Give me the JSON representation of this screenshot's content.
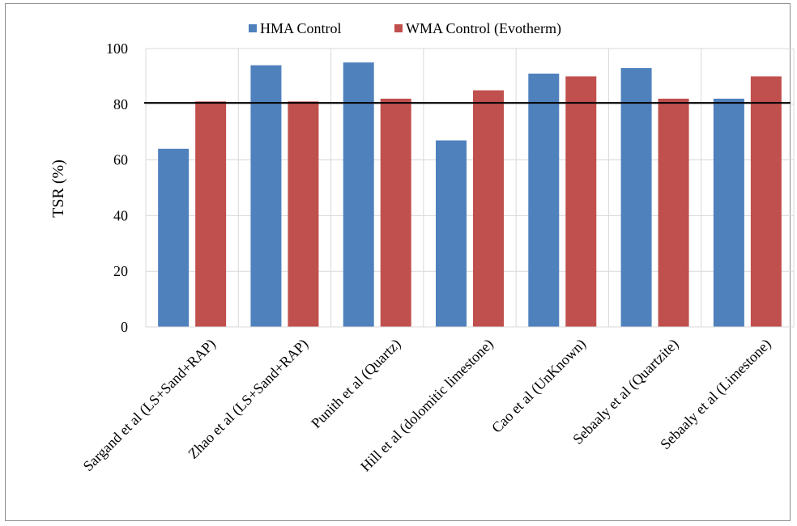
{
  "chart_data": {
    "type": "bar",
    "categories": [
      "Sargand et al (LS+Sand+RAP)",
      "Zhao et al (LS+Sand+RAP)",
      "Punith et al (Quartz)",
      "Hill et al (dolomitic limestone)",
      "Cao et al (UnKnown)",
      "Sebaaly et al (Quartzite)",
      "Sebaaly et al (Limestone)"
    ],
    "series": [
      {
        "name": "HMA Control",
        "color": "#4f81bd",
        "values": [
          64,
          94,
          95,
          67,
          91,
          93,
          82
        ]
      },
      {
        "name": "WMA Control (Evotherm)",
        "color": "#c0504d",
        "values": [
          81,
          81,
          82,
          85,
          90,
          82,
          90
        ]
      }
    ],
    "reference_line": {
      "value": 80.5,
      "color": "#000000"
    },
    "xlabel": "",
    "ylabel": "TSR (%)",
    "ylim": [
      0,
      100
    ],
    "yticks": [
      0,
      20,
      40,
      60,
      80,
      100
    ],
    "grid": true,
    "legend_position": "top-center"
  }
}
